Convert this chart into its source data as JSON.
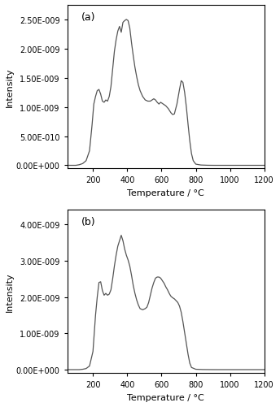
{
  "panel_a": {
    "label": "(a)",
    "ylabel": "Intensity",
    "xlabel": "Temperature / °C",
    "xlim": [
      50,
      1200
    ],
    "ylim": [
      -5e-11,
      2.75e-09
    ],
    "yticks": [
      0,
      5e-10,
      1e-09,
      1.5e-09,
      2e-09,
      2.5e-09
    ],
    "ytick_labels": [
      "0.00E+000",
      "5.00E-010",
      "1.00E-009",
      "1.50E-009",
      "2.00E-009",
      "2.50E-009"
    ],
    "xticks": [
      200,
      400,
      600,
      800,
      1000,
      1200
    ],
    "line_color": "#555555",
    "line_width": 0.9,
    "x": [
      50,
      80,
      100,
      120,
      140,
      160,
      180,
      195,
      205,
      215,
      225,
      235,
      245,
      255,
      265,
      275,
      285,
      295,
      305,
      315,
      325,
      335,
      345,
      355,
      365,
      375,
      385,
      395,
      405,
      415,
      425,
      435,
      445,
      455,
      465,
      475,
      490,
      505,
      520,
      535,
      545,
      555,
      565,
      575,
      585,
      595,
      610,
      625,
      640,
      655,
      665,
      675,
      690,
      705,
      715,
      725,
      735,
      745,
      755,
      765,
      775,
      785,
      800,
      830,
      870,
      910,
      950,
      1000,
      1050,
      1100,
      1150,
      1200
    ],
    "y": [
      0,
      0,
      0,
      1e-11,
      3e-11,
      8e-11,
      2.5e-10,
      7e-10,
      1.05e-09,
      1.18e-09,
      1.28e-09,
      1.3e-09,
      1.22e-09,
      1.1e-09,
      1.08e-09,
      1.12e-09,
      1.1e-09,
      1.18e-09,
      1.35e-09,
      1.65e-09,
      1.95e-09,
      2.15e-09,
      2.3e-09,
      2.38e-09,
      2.28e-09,
      2.45e-09,
      2.48e-09,
      2.5e-09,
      2.48e-09,
      2.35e-09,
      2.1e-09,
      1.88e-09,
      1.68e-09,
      1.52e-09,
      1.38e-09,
      1.28e-09,
      1.18e-09,
      1.12e-09,
      1.1e-09,
      1.1e-09,
      1.12e-09,
      1.14e-09,
      1.12e-09,
      1.08e-09,
      1.05e-09,
      1.08e-09,
      1.05e-09,
      1.02e-09,
      9.7e-10,
      9e-10,
      8.7e-10,
      8.8e-10,
      1.05e-09,
      1.3e-09,
      1.45e-09,
      1.42e-09,
      1.25e-09,
      1e-09,
      7e-10,
      4.2e-10,
      2e-10,
      8e-11,
      2e-11,
      5e-12,
      1e-12,
      0,
      0,
      0,
      0,
      0,
      0,
      0
    ]
  },
  "panel_b": {
    "label": "(b)",
    "ylabel": "Intensity",
    "xlabel": "Temperature / °C",
    "xlim": [
      50,
      1200
    ],
    "ylim": [
      -1e-10,
      4.4e-09
    ],
    "yticks": [
      0,
      1e-09,
      2e-09,
      3e-09,
      4e-09
    ],
    "ytick_labels": [
      "0.00E+000",
      "1.00E-009",
      "2.00E-009",
      "3.00E-009",
      "4.00E-009"
    ],
    "xticks": [
      200,
      400,
      600,
      800,
      1000,
      1200
    ],
    "line_color": "#555555",
    "line_width": 0.9,
    "x": [
      50,
      80,
      100,
      120,
      140,
      160,
      180,
      200,
      215,
      225,
      235,
      245,
      255,
      265,
      275,
      285,
      295,
      305,
      315,
      325,
      335,
      345,
      355,
      365,
      375,
      385,
      395,
      405,
      415,
      425,
      435,
      445,
      455,
      465,
      475,
      490,
      505,
      515,
      525,
      535,
      545,
      555,
      565,
      575,
      585,
      595,
      605,
      615,
      625,
      635,
      645,
      655,
      665,
      675,
      685,
      695,
      705,
      715,
      725,
      735,
      745,
      755,
      765,
      775,
      800,
      840,
      880,
      920,
      960,
      1000,
      1050,
      1100,
      1150,
      1200
    ],
    "y": [
      0,
      0,
      0,
      0,
      1e-11,
      3e-11,
      1e-10,
      5e-10,
      1.5e-09,
      2e-09,
      2.4e-09,
      2.42e-09,
      2.18e-09,
      2.05e-09,
      2.1e-09,
      2.05e-09,
      2.08e-09,
      2.2e-09,
      2.5e-09,
      2.85e-09,
      3.15e-09,
      3.4e-09,
      3.55e-09,
      3.7e-09,
      3.55e-09,
      3.32e-09,
      3.15e-09,
      3.02e-09,
      2.85e-09,
      2.6e-09,
      2.32e-09,
      2.1e-09,
      1.92e-09,
      1.78e-09,
      1.68e-09,
      1.65e-09,
      1.68e-09,
      1.72e-09,
      1.85e-09,
      2.05e-09,
      2.25e-09,
      2.4e-09,
      2.52e-09,
      2.55e-09,
      2.55e-09,
      2.52e-09,
      2.45e-09,
      2.38e-09,
      2.28e-09,
      2.2e-09,
      2.1e-09,
      2.02e-09,
      1.98e-09,
      1.95e-09,
      1.9e-09,
      1.85e-09,
      1.75e-09,
      1.58e-09,
      1.32e-09,
      1.02e-09,
      7.2e-10,
      4.2e-10,
      1.8e-10,
      6e-11,
      1e-11,
      3e-12,
      1e-12,
      0,
      0,
      0,
      0,
      0,
      0,
      0
    ]
  },
  "figure_bg": "#ffffff",
  "axes_bg": "#ffffff"
}
